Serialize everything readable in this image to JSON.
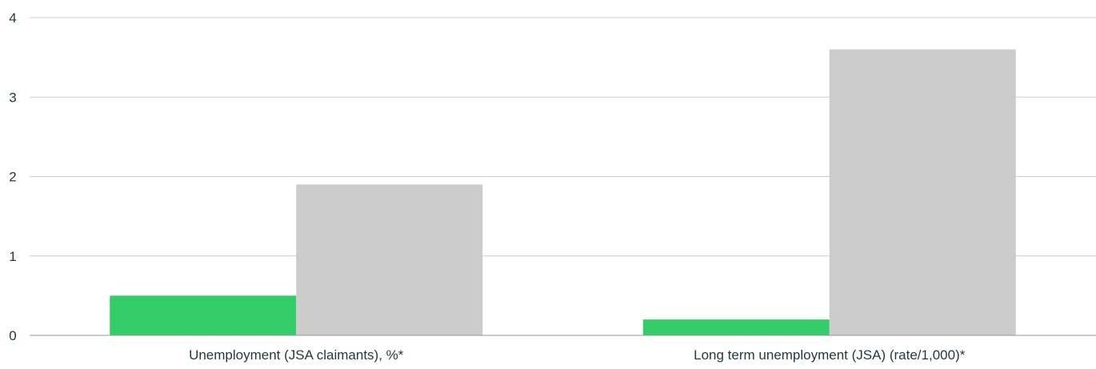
{
  "chart_data": {
    "type": "bar",
    "categories": [
      "Unemployment (JSA claimants), %*",
      "Long term unemployment (JSA) (rate/1,000)*"
    ],
    "series": [
      {
        "values": [
          0.5,
          0.2
        ],
        "color": "#33cc66"
      },
      {
        "values": [
          1.9,
          3.6
        ],
        "color": "#cccccc"
      }
    ],
    "y_ticks": [
      "0",
      "1",
      "2",
      "3",
      "4"
    ],
    "ylim": [
      0,
      4
    ],
    "grid": true,
    "gridline_color": "#cccccc",
    "axis_color": "#999999",
    "text_color": "#1e3a3a"
  }
}
